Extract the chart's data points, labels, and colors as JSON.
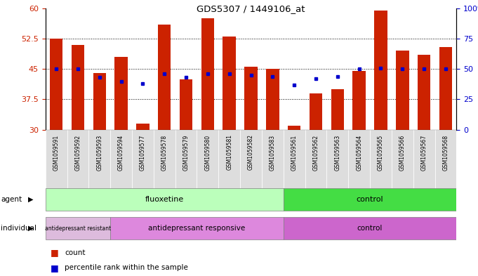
{
  "title": "GDS5307 / 1449106_at",
  "samples": [
    "GSM1059591",
    "GSM1059592",
    "GSM1059593",
    "GSM1059594",
    "GSM1059577",
    "GSM1059578",
    "GSM1059579",
    "GSM1059580",
    "GSM1059581",
    "GSM1059582",
    "GSM1059583",
    "GSM1059561",
    "GSM1059562",
    "GSM1059563",
    "GSM1059564",
    "GSM1059565",
    "GSM1059566",
    "GSM1059567",
    "GSM1059568"
  ],
  "counts": [
    52.5,
    51.0,
    44.0,
    48.0,
    31.5,
    56.0,
    42.5,
    57.5,
    53.0,
    45.5,
    45.0,
    31.0,
    39.0,
    40.0,
    44.5,
    59.5,
    49.5,
    48.5,
    50.5
  ],
  "percentiles": [
    50,
    50,
    43,
    40,
    38,
    46,
    43,
    46,
    46,
    45,
    44,
    37,
    42,
    44,
    50,
    51,
    50,
    50,
    50
  ],
  "bar_color": "#cc2200",
  "percentile_color": "#0000cc",
  "ylim_left": [
    30,
    60
  ],
  "ylim_right": [
    0,
    100
  ],
  "yticks_left": [
    30,
    37.5,
    45,
    52.5,
    60
  ],
  "ytick_labels_left": [
    "30",
    "37.5",
    "45",
    "52.5",
    "60"
  ],
  "yticks_right": [
    0,
    25,
    50,
    75,
    100
  ],
  "ytick_labels_right": [
    "0",
    "25",
    "50",
    "75",
    "100%"
  ],
  "agent_groups": [
    {
      "label": "fluoxetine",
      "start": 0,
      "end": 10,
      "color": "#bbffbb"
    },
    {
      "label": "control",
      "start": 11,
      "end": 18,
      "color": "#44dd44"
    }
  ],
  "individual_groups": [
    {
      "label": "antidepressant resistant",
      "start": 0,
      "end": 2,
      "color": "#ddbbdd"
    },
    {
      "label": "antidepressant responsive",
      "start": 3,
      "end": 10,
      "color": "#dd88dd"
    },
    {
      "label": "control",
      "start": 11,
      "end": 18,
      "color": "#cc66cc"
    }
  ],
  "bg_color": "#ffffff",
  "xlabel_color": "#cc2200",
  "ylabel_right_color": "#0000cc",
  "sample_bg_color": "#dddddd"
}
